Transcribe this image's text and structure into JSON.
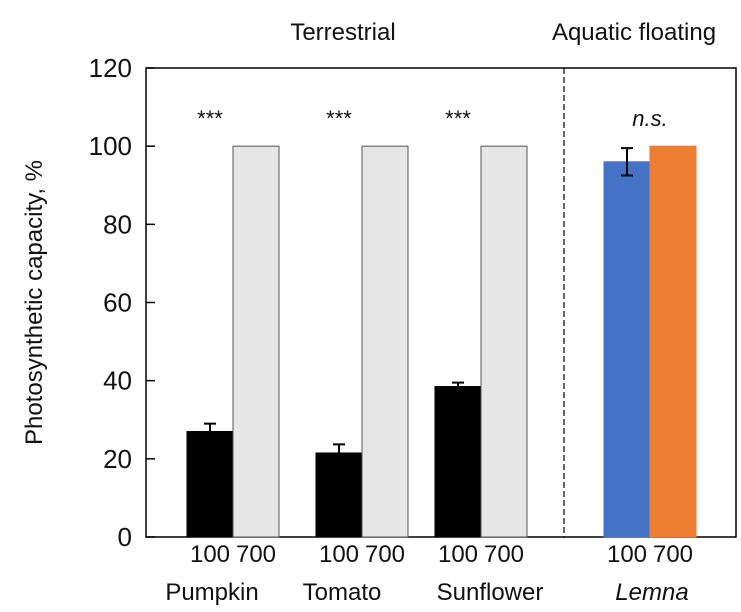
{
  "chart_data": {
    "type": "bar",
    "ylabel": "Photosynthetic capacity, %",
    "ylim": [
      0,
      120
    ],
    "yticks": [
      0,
      20,
      40,
      60,
      80,
      100,
      120
    ],
    "group_headers": [
      {
        "label": "Terrestrial",
        "categories": [
          0,
          1,
          2
        ]
      },
      {
        "label": "Aquatic floating",
        "categories": [
          3
        ]
      }
    ],
    "categories": [
      {
        "name": "Pumpkin",
        "italic": false,
        "significance": "***",
        "bars": [
          {
            "sublabel": "100",
            "value": 27,
            "error": 2,
            "color": "#000000"
          },
          {
            "sublabel": "700",
            "value": 100,
            "error": 0,
            "color": "#e6e6e6"
          }
        ]
      },
      {
        "name": "Tomato",
        "italic": false,
        "significance": "***",
        "bars": [
          {
            "sublabel": "100",
            "value": 21.5,
            "error": 2.2,
            "color": "#000000"
          },
          {
            "sublabel": "700",
            "value": 100,
            "error": 0,
            "color": "#e6e6e6"
          }
        ]
      },
      {
        "name": "Sunflower",
        "italic": false,
        "significance": "***",
        "bars": [
          {
            "sublabel": "100",
            "value": 38.5,
            "error": 1,
            "color": "#000000"
          },
          {
            "sublabel": "700",
            "value": 100,
            "error": 0,
            "color": "#e6e6e6"
          }
        ]
      },
      {
        "name": "Lemna",
        "italic": true,
        "significance": "n.s.",
        "bars": [
          {
            "sublabel": "100",
            "value": 96,
            "error": 3.5,
            "color": "#4472c4"
          },
          {
            "sublabel": "700",
            "value": 100,
            "error": 0,
            "color": "#ed7d31"
          }
        ]
      }
    ],
    "grid": false
  }
}
